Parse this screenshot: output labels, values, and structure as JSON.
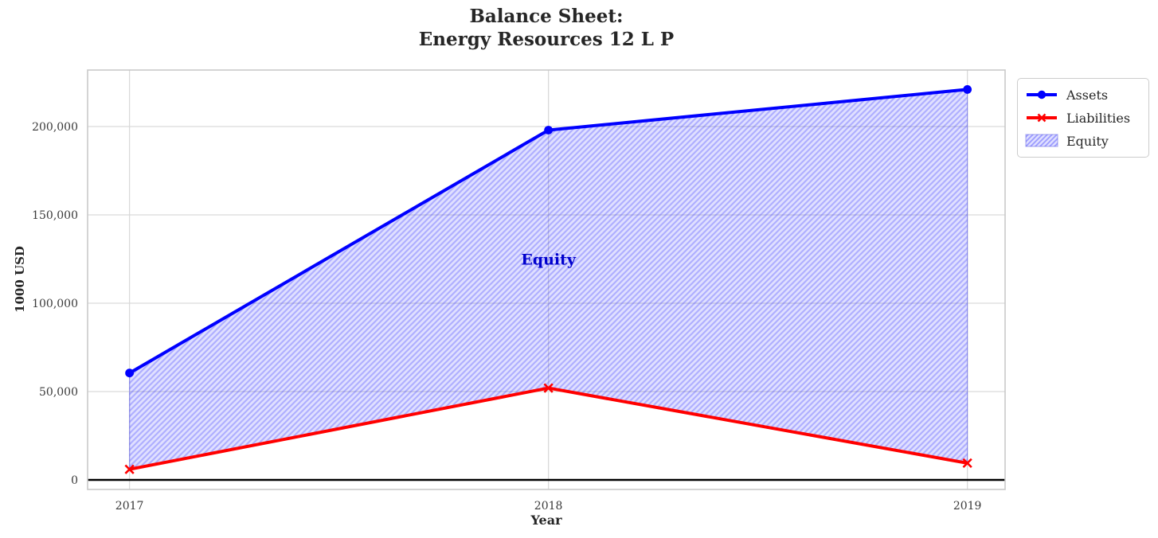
{
  "chart": {
    "title_line1": "Balance Sheet:",
    "title_line2": "Energy Resources 12 L P"
  },
  "axes": {
    "xlabel": "Year",
    "ylabel": "1000 USD"
  },
  "legend": {
    "items": [
      {
        "label": "Assets",
        "swatch": "blue-line-circle-marker"
      },
      {
        "label": "Liabilities",
        "swatch": "red-line-x-marker"
      },
      {
        "label": "Equity",
        "swatch": "hatched-patch"
      }
    ],
    "position": "upper-right-outside"
  },
  "chart_data": {
    "type": "line",
    "title": "Balance Sheet:\nEnergy Resources 12 L P",
    "xlabel": "Year",
    "ylabel": "1000 USD",
    "x": [
      2017,
      2018,
      2019
    ],
    "series": [
      {
        "name": "Assets",
        "color": "#0000ff",
        "marker": "circle",
        "values": [
          60500,
          198000,
          221000
        ]
      },
      {
        "name": "Liabilities",
        "color": "#ff0000",
        "marker": "x",
        "values": [
          6000,
          52000,
          9500
        ]
      }
    ],
    "fill_between": {
      "label": "Equity",
      "upper_series": "Assets",
      "lower_series": "Liabilities",
      "hatch": "/",
      "fill_color": "rgba(0,0,255,0.12)",
      "hatch_color": "rgba(0,0,255,0.22)",
      "edge_color": "rgba(0,0,255,0.28)"
    },
    "annotation": {
      "text": "Equity",
      "x": 2018,
      "y": 125000,
      "color": "#0000cd"
    },
    "xlim": [
      2016.9,
      2019.09
    ],
    "ylim": [
      -5400,
      232000
    ],
    "xticks": [
      2017,
      2018,
      2019
    ],
    "xtick_labels": [
      "2017",
      "2018",
      "2019"
    ],
    "yticks": [
      0,
      50000,
      100000,
      150000,
      200000
    ],
    "ytick_labels": [
      "0",
      "50,000",
      "100,000",
      "150,000",
      "200,000"
    ],
    "grid": true,
    "grid_color": "#d9d9d9",
    "spine_color": "#c9c9c9",
    "zero_line": {
      "y": 0,
      "color": "#000000"
    },
    "legend_position": "upper right, outside plot"
  }
}
